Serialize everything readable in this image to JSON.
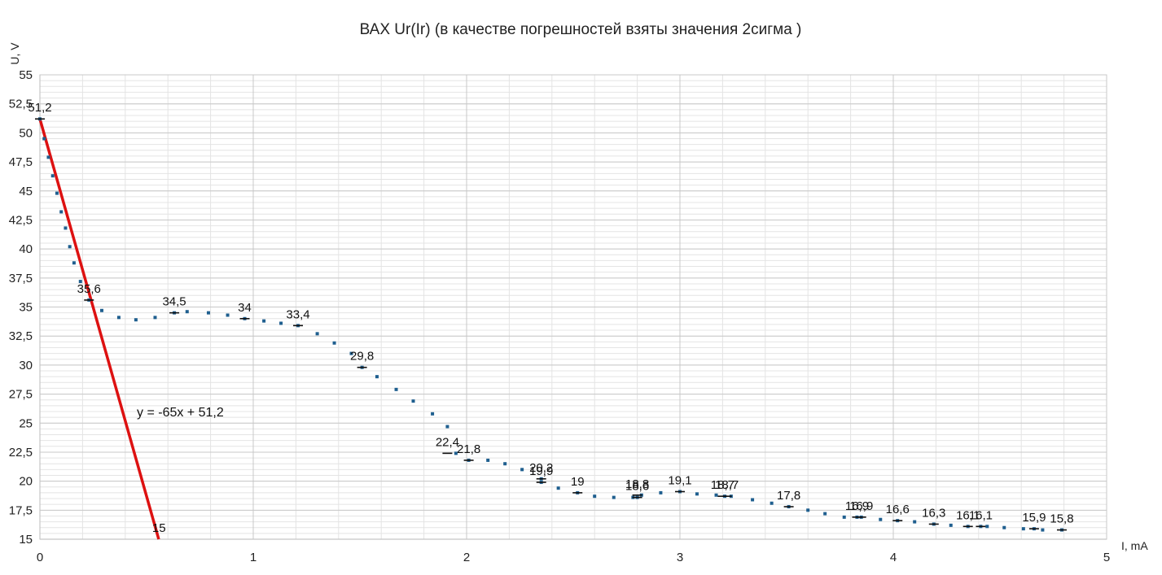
{
  "chart_data": {
    "type": "scatter",
    "title": "ВАХ Ur(Ir) (в качестве погрешностей взяты значения 2сигма )",
    "xlabel": "I, mA",
    "ylabel": "U, V",
    "xlim": [
      0,
      5
    ],
    "ylim": [
      15,
      55
    ],
    "x_major_ticks": [
      0,
      1,
      2,
      3,
      4,
      5
    ],
    "x_minor_step": 0.2,
    "y_ticks": [
      15,
      17.5,
      20,
      22.5,
      25,
      27.5,
      30,
      32.5,
      35,
      37.5,
      40,
      42.5,
      45,
      47.5,
      50,
      52.5,
      55
    ],
    "y_tick_labels": [
      "15",
      "17,5",
      "20",
      "22,5",
      "25",
      "27,5",
      "30",
      "32,5",
      "35",
      "37,5",
      "40",
      "42,5",
      "45",
      "47,5",
      "50",
      "52,5",
      "55"
    ],
    "y_minor_step": 0.5,
    "grid": true,
    "colors": {
      "points": "#1f5f8f",
      "trendline": "#dd1111",
      "grid_major": "#c8c8c8",
      "grid_minor": "#e4e4e4"
    },
    "series": [
      {
        "x": [
          0.0,
          0.02,
          0.04,
          0.06,
          0.08,
          0.1,
          0.12,
          0.14,
          0.16,
          0.19,
          0.23,
          0.29,
          0.37,
          0.45,
          0.54,
          0.63,
          0.69,
          0.79,
          0.88,
          0.96,
          1.05,
          1.13,
          1.21,
          1.3,
          1.38,
          1.46,
          1.51,
          1.58,
          1.67,
          1.75,
          1.84,
          1.91,
          1.95,
          2.01,
          2.1,
          2.18,
          2.26,
          2.35,
          2.35,
          2.43,
          2.52,
          2.6,
          2.69,
          2.78,
          2.8,
          2.82,
          2.91,
          3.0,
          3.08,
          3.17,
          3.21,
          3.24,
          3.34,
          3.43,
          3.51,
          3.6,
          3.68,
          3.77,
          3.83,
          3.85,
          3.94,
          4.02,
          4.1,
          4.19,
          4.27,
          4.35,
          4.41,
          4.44,
          4.52,
          4.61,
          4.66,
          4.7,
          4.79
        ],
        "y": [
          51.2,
          49.5,
          47.9,
          46.3,
          44.8,
          43.2,
          41.8,
          40.2,
          38.8,
          37.2,
          35.6,
          34.7,
          34.1,
          33.9,
          34.1,
          34.5,
          34.6,
          34.5,
          34.3,
          34.0,
          33.8,
          33.6,
          33.4,
          32.7,
          31.9,
          31.0,
          29.8,
          29.0,
          27.9,
          26.9,
          25.8,
          24.7,
          22.4,
          21.8,
          21.8,
          21.5,
          21.0,
          20.2,
          19.9,
          19.4,
          19.0,
          18.7,
          18.6,
          18.6,
          18.6,
          18.8,
          19.0,
          19.1,
          18.9,
          18.8,
          18.7,
          18.7,
          18.4,
          18.1,
          17.8,
          17.5,
          17.2,
          16.9,
          16.9,
          16.9,
          16.7,
          16.6,
          16.5,
          16.3,
          16.2,
          16.1,
          16.1,
          16.1,
          16.0,
          15.9,
          15.9,
          15.8,
          15.8
        ],
        "labeled_points": [
          {
            "x": 0.0,
            "y": 51.2,
            "label": "51,2"
          },
          {
            "x": 0.23,
            "y": 35.6,
            "label": "35,6"
          },
          {
            "x": 0.63,
            "y": 34.5,
            "label": "34,5"
          },
          {
            "x": 0.96,
            "y": 34.0,
            "label": "34"
          },
          {
            "x": 1.21,
            "y": 33.4,
            "label": "33,4"
          },
          {
            "x": 1.51,
            "y": 29.8,
            "label": "29,8"
          },
          {
            "x": 1.91,
            "y": 22.4,
            "label": "22,4"
          },
          {
            "x": 2.01,
            "y": 21.8,
            "label": "21,8"
          },
          {
            "x": 2.35,
            "y": 20.2,
            "label": "20,2"
          },
          {
            "x": 2.35,
            "y": 19.9,
            "label": "19,9"
          },
          {
            "x": 2.52,
            "y": 19.0,
            "label": "19"
          },
          {
            "x": 2.8,
            "y": 18.8,
            "label": "18,8"
          },
          {
            "x": 2.8,
            "y": 18.6,
            "label": "18,6"
          },
          {
            "x": 3.0,
            "y": 19.1,
            "label": "19,1"
          },
          {
            "x": 3.2,
            "y": 18.7,
            "label": "18,7"
          },
          {
            "x": 3.22,
            "y": 18.7,
            "label": "18,7"
          },
          {
            "x": 3.51,
            "y": 17.8,
            "label": "17,8"
          },
          {
            "x": 3.83,
            "y": 16.9,
            "label": "16,9"
          },
          {
            "x": 3.85,
            "y": 16.9,
            "label": "16,9"
          },
          {
            "x": 4.02,
            "y": 16.6,
            "label": "16,6"
          },
          {
            "x": 4.19,
            "y": 16.3,
            "label": "16,3"
          },
          {
            "x": 4.35,
            "y": 16.1,
            "label": "16,1"
          },
          {
            "x": 4.41,
            "y": 16.1,
            "label": "16,1"
          },
          {
            "x": 4.66,
            "y": 15.9,
            "label": "15,9"
          },
          {
            "x": 4.79,
            "y": 15.8,
            "label": "15,8"
          }
        ]
      }
    ],
    "trendline": {
      "equation": "y = -65x + 51,2",
      "slope": -65,
      "intercept": 51.2,
      "x_range": [
        0.0,
        0.557
      ],
      "end_label": "15"
    }
  }
}
